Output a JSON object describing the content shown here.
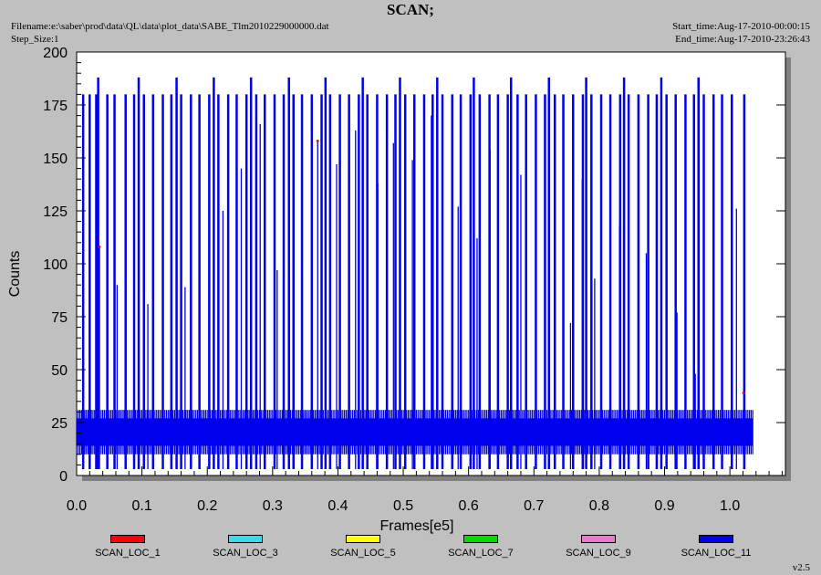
{
  "header": {
    "title": "SCAN;",
    "filename": "Filename:e:\\saber\\prod\\data\\QL\\data\\plot_data\\SABE_Tlm2010229000000.dat",
    "step_size": "Step_Size:1",
    "start_time": "Start_time:Aug-17-2010-00:00:15",
    "end_time": "End_time:Aug-17-2010-23:26:43"
  },
  "version": "v2.5",
  "colors": {
    "background": "#c0c0c0",
    "plot_area": "#ffffff",
    "frame_shadow": "#808080"
  },
  "chart_data": {
    "type": "line",
    "title": "SCAN;",
    "xlabel": "Frames[e5]",
    "ylabel": "Counts",
    "xlim": [
      0,
      1.085
    ],
    "ylim": [
      0,
      200
    ],
    "x_ticks": [
      "0.0",
      "0.1",
      "0.2",
      "0.3",
      "0.4",
      "0.5",
      "0.6",
      "0.7",
      "0.8",
      "0.9",
      "1.0"
    ],
    "y_ticks": [
      "0",
      "25",
      "50",
      "75",
      "100",
      "125",
      "150",
      "175",
      "200"
    ],
    "grid": false,
    "legend_position": "bottom",
    "baseline_band": {
      "low": 10,
      "high": 31,
      "x_start": 0.0,
      "x_end": 1.035
    },
    "spike_low": 3,
    "spikes_180": [
      0.01,
      0.02,
      0.03,
      0.047,
      0.058,
      0.075,
      0.088,
      0.103,
      0.117,
      0.132,
      0.145,
      0.16,
      0.175,
      0.188,
      0.203,
      0.217,
      0.232,
      0.245,
      0.26,
      0.275,
      0.288,
      0.303,
      0.317,
      0.332,
      0.345,
      0.36,
      0.375,
      0.388,
      0.403,
      0.417,
      0.432,
      0.445,
      0.46,
      0.475,
      0.488,
      0.503,
      0.517,
      0.532,
      0.545,
      0.56,
      0.575,
      0.588,
      0.603,
      0.617,
      0.632,
      0.645,
      0.66,
      0.675,
      0.688,
      0.703,
      0.717,
      0.732,
      0.745,
      0.76,
      0.775,
      0.788,
      0.803,
      0.817,
      0.832,
      0.845,
      0.86,
      0.875,
      0.888,
      0.903,
      0.917,
      0.932,
      0.945,
      0.96,
      0.975,
      0.988,
      1.003,
      1.022
    ],
    "spikes_188": [
      0.033,
      0.095,
      0.153,
      0.21,
      0.267,
      0.325,
      0.381,
      0.438,
      0.495,
      0.552,
      0.608,
      0.665,
      0.723,
      0.78,
      0.838,
      0.895,
      0.952
    ],
    "partial_spikes": [
      {
        "x": 0.035,
        "y": 108
      },
      {
        "x": 0.062,
        "y": 90
      },
      {
        "x": 0.109,
        "y": 81
      },
      {
        "x": 0.166,
        "y": 89
      },
      {
        "x": 0.224,
        "y": 125
      },
      {
        "x": 0.252,
        "y": 145
      },
      {
        "x": 0.281,
        "y": 166
      },
      {
        "x": 0.307,
        "y": 97
      },
      {
        "x": 0.369,
        "y": 158
      },
      {
        "x": 0.398,
        "y": 147
      },
      {
        "x": 0.427,
        "y": 163
      },
      {
        "x": 0.461,
        "y": 138
      },
      {
        "x": 0.485,
        "y": 157
      },
      {
        "x": 0.514,
        "y": 149
      },
      {
        "x": 0.543,
        "y": 170
      },
      {
        "x": 0.584,
        "y": 127
      },
      {
        "x": 0.613,
        "y": 112
      },
      {
        "x": 0.633,
        "y": 154
      },
      {
        "x": 0.68,
        "y": 142
      },
      {
        "x": 0.703,
        "y": 134
      },
      {
        "x": 0.756,
        "y": 72
      },
      {
        "x": 0.774,
        "y": 140
      },
      {
        "x": 0.793,
        "y": 93
      },
      {
        "x": 0.831,
        "y": 118
      },
      {
        "x": 0.845,
        "y": 160
      },
      {
        "x": 0.872,
        "y": 105
      },
      {
        "x": 0.919,
        "y": 77
      },
      {
        "x": 0.947,
        "y": 48
      },
      {
        "x": 1.01,
        "y": 126
      }
    ],
    "series": [
      {
        "name": "SCAN_LOC_1",
        "color": "#ff0000"
      },
      {
        "name": "SCAN_LOC_3",
        "color": "#33ddee"
      },
      {
        "name": "SCAN_LOC_5",
        "color": "#ffff00"
      },
      {
        "name": "SCAN_LOC_7",
        "color": "#00dd00"
      },
      {
        "name": "SCAN_LOC_9",
        "color": "#ee77cc"
      },
      {
        "name": "SCAN_LOC_11",
        "color": "#0000ee"
      }
    ]
  }
}
